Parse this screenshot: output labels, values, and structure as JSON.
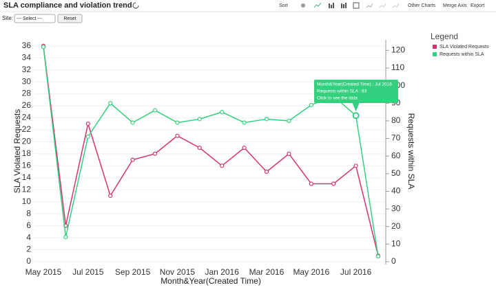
{
  "header": {
    "title": "SLA compliance and violation trend"
  },
  "toolbar": {
    "sort": "Sort",
    "other_charts": "Other Charts",
    "merge_axis": "Merge Axis",
    "export": "Export"
  },
  "filter": {
    "label": "Site:",
    "select": "--- Select ---",
    "reset": "Reset"
  },
  "tooltip": {
    "line1": "Month&Year(Created Time) : Jul 2016",
    "line2": "Requests within SLA : 83",
    "line3": "Click to see the data"
  },
  "chart_data": {
    "type": "line",
    "x_label": "Month&Year(Created Time)",
    "y_label": "SLA Violated Requests",
    "y2_label": "Requests within SLA",
    "legend_title": "Legend",
    "legend": "top-right",
    "grid": true,
    "categories": [
      "May 2015",
      null,
      "Jul 2015",
      null,
      "Sep 2015",
      null,
      "Nov 2015",
      null,
      "Jan 2016",
      null,
      "Mar 2016",
      null,
      "May 2016",
      null,
      "Jul 2016",
      null
    ],
    "series": [
      {
        "name": "SLA Violated Requests",
        "color": "#d6336c",
        "values": [
          36,
          6,
          23,
          11,
          17,
          18,
          21,
          19,
          16,
          19,
          15,
          18,
          13,
          13,
          16,
          1
        ]
      },
      {
        "name": "Requests within SLA",
        "color": "#35d07f",
        "axis": "y2",
        "values": [
          122,
          14,
          71,
          90,
          79,
          86,
          79,
          81,
          85,
          79,
          81,
          80,
          89,
          94,
          83,
          3
        ]
      }
    ],
    "ylim": [
      0,
      37
    ],
    "yticks": [
      0,
      2,
      4,
      6,
      8,
      10,
      12,
      14,
      16,
      18,
      20,
      22,
      24,
      26,
      28,
      30,
      32,
      34,
      36
    ],
    "y2lim": [
      0,
      126
    ],
    "y2ticks": [
      0,
      10,
      20,
      30,
      40,
      50,
      60,
      70,
      80,
      90,
      100,
      110,
      120
    ]
  }
}
